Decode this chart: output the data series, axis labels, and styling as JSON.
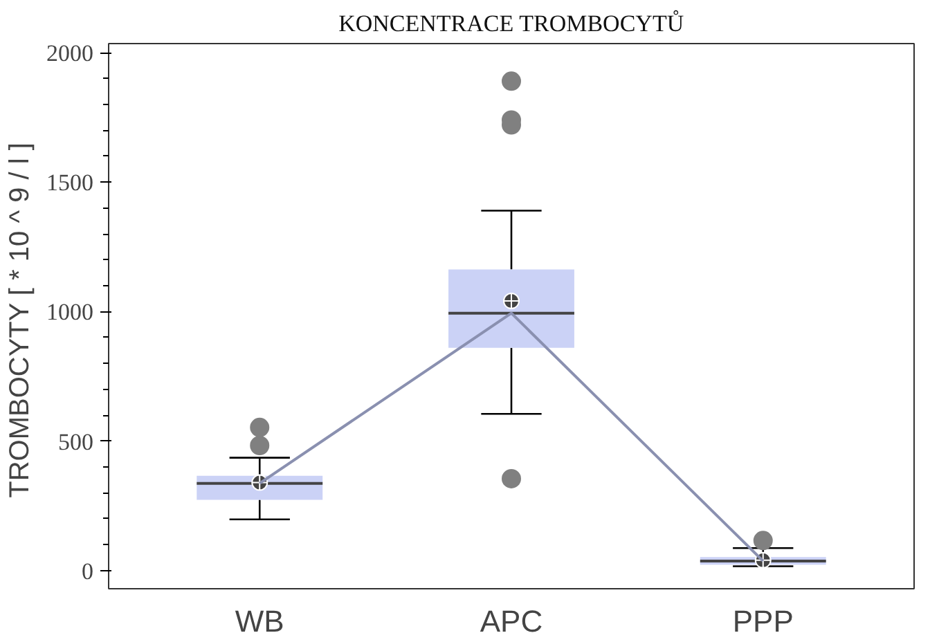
{
  "chart_data": {
    "type": "box",
    "title": "KONCENTRACE TROMBOCYTŮ",
    "ylabel": "TROMBOCYTY  [ * 10 ^ 9 / l ]",
    "categories": [
      "WB",
      "APC",
      "PPP"
    ],
    "color": "#c5cdf5",
    "boxes": [
      {
        "low": 198,
        "q1": 273,
        "median": 337,
        "q3": 366,
        "high": 436,
        "mean": 340,
        "outliers": [
          553,
          483
        ]
      },
      {
        "low": 605,
        "q1": 860,
        "median": 994,
        "q3": 1163,
        "high": 1390,
        "mean": 1041,
        "outliers": [
          1890,
          1740,
          1721,
          355
        ]
      },
      {
        "low": 17,
        "q1": 23,
        "median": 37,
        "q3": 52,
        "high": 87,
        "mean": 40,
        "outliers": [
          116
        ]
      }
    ],
    "series": [
      {
        "type": "line",
        "color": "#8a90b0",
        "values": [
          337,
          994,
          37
        ]
      }
    ],
    "ylim": [
      -70,
      2035
    ],
    "yticks": [
      0,
      500,
      1000,
      1500,
      2000
    ]
  }
}
